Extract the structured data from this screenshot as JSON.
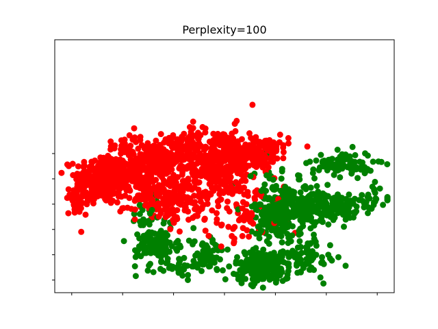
{
  "chart_data": {
    "type": "scatter",
    "title": "Perplexity=100",
    "xlabel": "",
    "ylabel": "",
    "xlim": [
      -100,
      100
    ],
    "ylim": [
      -100,
      100
    ],
    "x_ticks": [
      -90,
      -60,
      -30,
      0,
      30,
      60,
      90
    ],
    "y_ticks": [
      -90,
      -70,
      -50,
      -30,
      -10,
      10
    ],
    "tick_labels_visible": false,
    "grid": false,
    "legend": "none",
    "series": [
      {
        "color": "#ff0000",
        "clusters": [
          {
            "cx": -72,
            "cy": -10,
            "sx": 8,
            "sy": 10,
            "n": 260
          },
          {
            "cx": -52,
            "cy": -3,
            "sx": 10,
            "sy": 13,
            "n": 230
          },
          {
            "cx": -32,
            "cy": -25,
            "sx": 10,
            "sy": 9,
            "n": 170
          },
          {
            "cx": -38,
            "cy": 5,
            "sx": 7,
            "sy": 6,
            "n": 90
          },
          {
            "cx": -5,
            "cy": 4,
            "sx": 13,
            "sy": 13,
            "n": 380
          },
          {
            "cx": 20,
            "cy": 13,
            "sx": 9,
            "sy": 6,
            "n": 140
          },
          {
            "cx": -85,
            "cy": -25,
            "sx": 4,
            "sy": 5,
            "n": 40
          },
          {
            "cx": -25,
            "cy": 16,
            "sx": 5,
            "sy": 4,
            "n": 40
          },
          {
            "cx": 5,
            "cy": -40,
            "sx": 16,
            "sy": 10,
            "n": 60
          },
          {
            "cx": 10,
            "cy": -27,
            "sx": 14,
            "sy": 16,
            "n": 40
          }
        ]
      },
      {
        "color": "#008000",
        "clusters": [
          {
            "cx": 70,
            "cy": 2,
            "sx": 9,
            "sy": 5,
            "n": 90
          },
          {
            "cx": 38,
            "cy": -32,
            "sx": 10,
            "sy": 9,
            "n": 220
          },
          {
            "cx": 60,
            "cy": -32,
            "sx": 8,
            "sy": 6,
            "n": 130
          },
          {
            "cx": 30,
            "cy": -45,
            "sx": 6,
            "sy": 8,
            "n": 90
          },
          {
            "cx": 22,
            "cy": -79,
            "sx": 8,
            "sy": 6,
            "n": 190
          },
          {
            "cx": 48,
            "cy": -72,
            "sx": 9,
            "sy": 8,
            "n": 80
          },
          {
            "cx": -40,
            "cy": -62,
            "sx": 6,
            "sy": 6,
            "n": 110
          },
          {
            "cx": -10,
            "cy": -70,
            "sx": 5,
            "sy": 7,
            "n": 70
          },
          {
            "cx": -25,
            "cy": -80,
            "sx": 9,
            "sy": 4,
            "n": 40
          },
          {
            "cx": 83,
            "cy": -28,
            "sx": 8,
            "sy": 6,
            "n": 40
          },
          {
            "cx": -45,
            "cy": -40,
            "sx": 6,
            "sy": 8,
            "n": 30
          },
          {
            "cx": 30,
            "cy": -10,
            "sx": 10,
            "sy": 10,
            "n": 20
          }
        ]
      }
    ]
  }
}
